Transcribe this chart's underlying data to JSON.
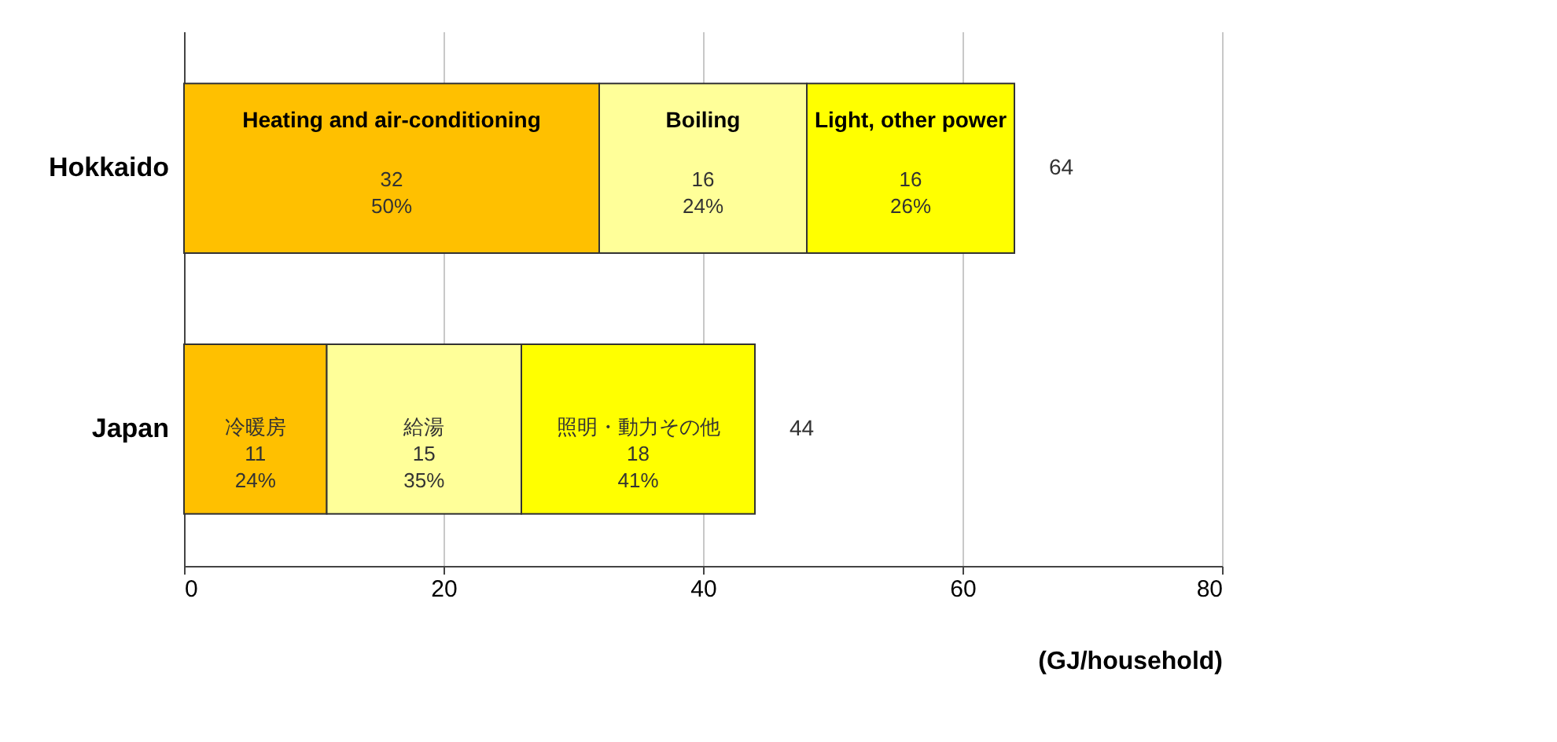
{
  "chart_data": {
    "type": "bar",
    "orientation": "horizontal",
    "stacked": true,
    "categories": [
      "Hokkaido",
      "Japan"
    ],
    "series": [
      {
        "name": "Heating and air-conditioning",
        "color": "#ffc000",
        "values": [
          32,
          11
        ],
        "value_labels": [
          "32\n50%",
          "冷暖房\n11\n24%"
        ]
      },
      {
        "name": "Boiling",
        "color": "#ffff99",
        "values": [
          16,
          15
        ],
        "value_labels": [
          "16\n24%",
          "給湯\n15\n35%"
        ]
      },
      {
        "name": "Light,  other power",
        "color": "#ffff00",
        "values": [
          16,
          18
        ],
        "value_labels": [
          "16\n26%",
          "照明・動力その他\n18\n41%"
        ]
      }
    ],
    "totals": [
      "64",
      "44"
    ],
    "xlim": [
      0,
      80
    ],
    "xticks": [
      0,
      20,
      40,
      60,
      80
    ],
    "grid": "x",
    "xlabel": "(GJ/household)"
  }
}
